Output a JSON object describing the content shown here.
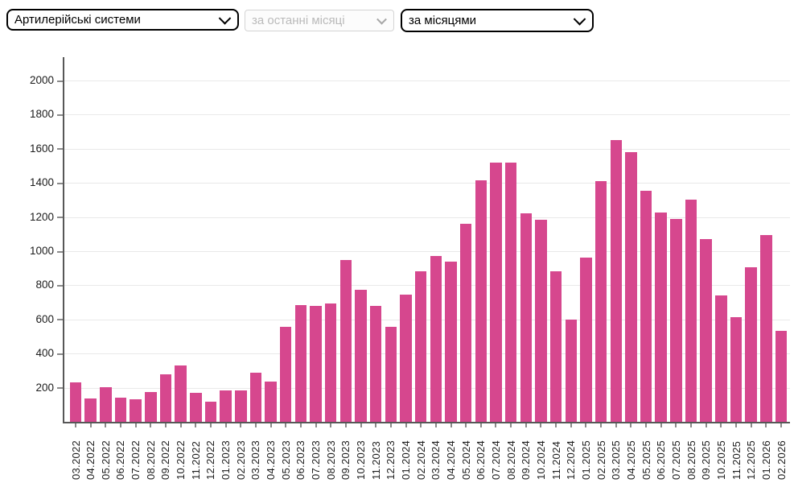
{
  "controls": {
    "category_select": {
      "value": "Артилерійські системи",
      "disabled": false
    },
    "period_select": {
      "value": "за останні місяці",
      "disabled": true
    },
    "grouping_select": {
      "value": "за місяцями",
      "disabled": false
    }
  },
  "colors": {
    "bar": "#d6478e",
    "axis": "#575757",
    "grid": "#e9e9e9",
    "tick": "#8a8a8a",
    "text": "#1c1c1c"
  },
  "chart_data": {
    "type": "bar",
    "title": "",
    "xlabel": "",
    "ylabel": "",
    "legend": false,
    "grid": true,
    "ylim": [
      0,
      2100
    ],
    "yticks": [
      200,
      400,
      600,
      800,
      1000,
      1200,
      1400,
      1600,
      1800,
      2000
    ],
    "categories": [
      "03.2022",
      "04.2022",
      "05.2022",
      "06.2022",
      "07.2022",
      "08.2022",
      "09.2022",
      "10.2022",
      "11.2022",
      "12.2022",
      "01.2023",
      "02.2023",
      "03.2023",
      "04.2023",
      "05.2023",
      "06.2023",
      "07.2023",
      "08.2023",
      "09.2023",
      "10.2023",
      "11.2023",
      "12.2023",
      "01.2024",
      "02.2024",
      "03.2024",
      "04.2024",
      "05.2024",
      "06.2024",
      "07.2024",
      "08.2024",
      "09.2024",
      "10.2024",
      "11.2024",
      "12.2024",
      "01.2025",
      "02.2025",
      "03.2025",
      "04.2025",
      "05.2025",
      "06.2025",
      "07.2025",
      "08.2025",
      "09.2025",
      "10.2025",
      "11.2025",
      "12.2025",
      "01.2026",
      "02.2026"
    ],
    "values": [
      230,
      135,
      205,
      140,
      130,
      175,
      280,
      330,
      170,
      120,
      185,
      185,
      290,
      235,
      555,
      685,
      680,
      695,
      950,
      775,
      680,
      555,
      745,
      880,
      970,
      940,
      1160,
      1415,
      1520,
      1520,
      1220,
      1185,
      880,
      600,
      960,
      1410,
      1650,
      1580,
      1355,
      1225,
      1190,
      1300,
      1070,
      740,
      615,
      905,
      1095,
      535
    ]
  }
}
